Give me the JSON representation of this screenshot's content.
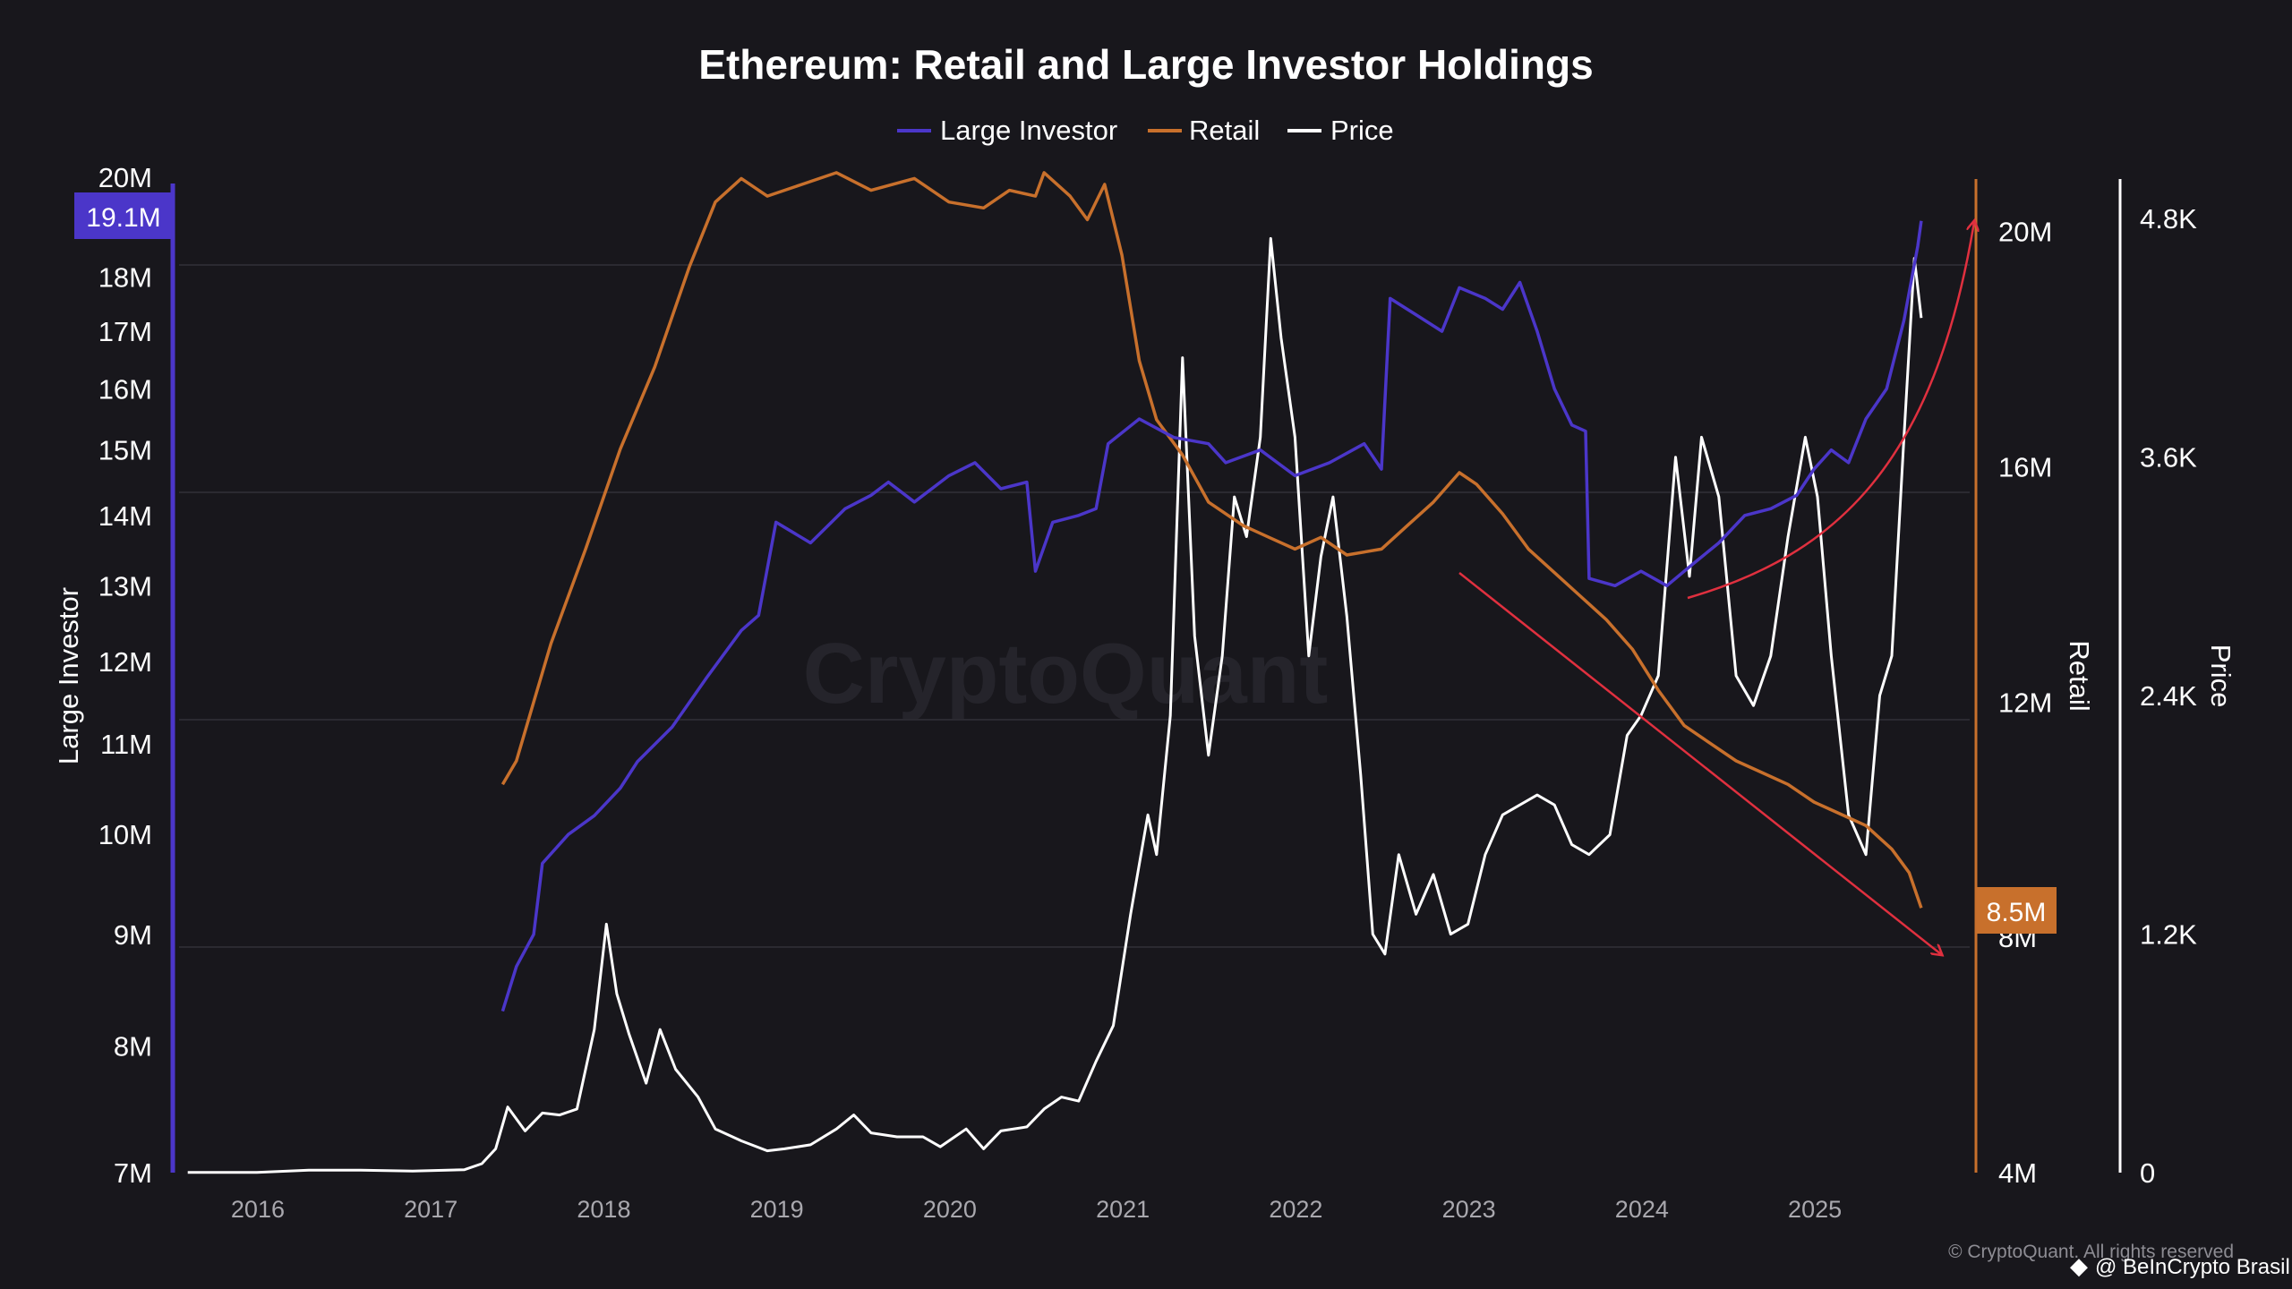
{
  "chart_data": {
    "type": "line",
    "title": "Ethereum: Retail and Large Investor Holdings",
    "watermark": "CryptoQuant",
    "legend": {
      "placement": "top-center",
      "items": [
        "Large Investor",
        "Retail",
        "Price"
      ]
    },
    "x_axis": {
      "ticks": [
        "2016",
        "2017",
        "2018",
        "2019",
        "2020",
        "2021",
        "2022",
        "2023",
        "2024",
        "2025"
      ],
      "range": [
        2015.55,
        2025.9
      ]
    },
    "y_axes": {
      "left": {
        "label": "Large Investor",
        "scale": "log",
        "range": [
          7000000,
          20000000
        ],
        "ticks": [
          "7M",
          "8M",
          "9M",
          "10M",
          "11M",
          "12M",
          "13M",
          "14M",
          "15M",
          "16M",
          "17M",
          "18M",
          "20M"
        ],
        "color": "#ffffff",
        "axis_color": "#4b36c9"
      },
      "right_retail": {
        "label": "Retail",
        "scale": "linear",
        "range": [
          4000000,
          21500000
        ],
        "ticks": [
          "4M",
          "8M",
          "12M",
          "16M",
          "20M"
        ],
        "axis_color": "#c8702c"
      },
      "right_price": {
        "label": "Price",
        "scale": "linear",
        "range": [
          0,
          4900
        ],
        "ticks": [
          "0",
          "1.2K",
          "2.4K",
          "3.6K",
          "4.8K"
        ],
        "axis_color": "#ffffff"
      }
    },
    "series": [
      {
        "name": "Large Investor",
        "axis": "left",
        "color": "#4b36c9",
        "last_value_label": "19.1M",
        "points": [
          [
            2017.42,
            8300000
          ],
          [
            2017.5,
            8700000
          ],
          [
            2017.6,
            9000000
          ],
          [
            2017.65,
            9700000
          ],
          [
            2017.8,
            10000000
          ],
          [
            2017.95,
            10200000
          ],
          [
            2018.1,
            10500000
          ],
          [
            2018.2,
            10800000
          ],
          [
            2018.4,
            11200000
          ],
          [
            2018.6,
            11800000
          ],
          [
            2018.8,
            12400000
          ],
          [
            2018.9,
            12600000
          ],
          [
            2019.0,
            13900000
          ],
          [
            2019.2,
            13600000
          ],
          [
            2019.4,
            14100000
          ],
          [
            2019.55,
            14300000
          ],
          [
            2019.65,
            14500000
          ],
          [
            2019.8,
            14200000
          ],
          [
            2020.0,
            14600000
          ],
          [
            2020.15,
            14800000
          ],
          [
            2020.3,
            14400000
          ],
          [
            2020.45,
            14500000
          ],
          [
            2020.5,
            13200000
          ],
          [
            2020.6,
            13900000
          ],
          [
            2020.75,
            14000000
          ],
          [
            2020.85,
            14100000
          ],
          [
            2020.92,
            15100000
          ],
          [
            2021.1,
            15500000
          ],
          [
            2021.3,
            15200000
          ],
          [
            2021.5,
            15100000
          ],
          [
            2021.6,
            14800000
          ],
          [
            2021.8,
            15000000
          ],
          [
            2022.0,
            14600000
          ],
          [
            2022.2,
            14800000
          ],
          [
            2022.4,
            15100000
          ],
          [
            2022.5,
            14700000
          ],
          [
            2022.55,
            17600000
          ],
          [
            2022.7,
            17300000
          ],
          [
            2022.85,
            17000000
          ],
          [
            2022.95,
            17800000
          ],
          [
            2023.1,
            17600000
          ],
          [
            2023.2,
            17400000
          ],
          [
            2023.3,
            17900000
          ],
          [
            2023.4,
            17000000
          ],
          [
            2023.5,
            16000000
          ],
          [
            2023.6,
            15400000
          ],
          [
            2023.68,
            15300000
          ],
          [
            2023.7,
            13100000
          ],
          [
            2023.85,
            13000000
          ],
          [
            2024.0,
            13200000
          ],
          [
            2024.15,
            13000000
          ],
          [
            2024.3,
            13300000
          ],
          [
            2024.45,
            13600000
          ],
          [
            2024.6,
            14000000
          ],
          [
            2024.75,
            14100000
          ],
          [
            2024.9,
            14300000
          ],
          [
            2025.0,
            14700000
          ],
          [
            2025.1,
            15000000
          ],
          [
            2025.2,
            14800000
          ],
          [
            2025.3,
            15500000
          ],
          [
            2025.42,
            16000000
          ],
          [
            2025.52,
            17200000
          ],
          [
            2025.6,
            18600000
          ],
          [
            2025.62,
            19100000
          ]
        ]
      },
      {
        "name": "Retail",
        "axis": "right_retail",
        "color": "#c8702c",
        "last_value_label": "8.5M",
        "points": [
          [
            2017.42,
            10600000
          ],
          [
            2017.5,
            11000000
          ],
          [
            2017.6,
            12000000
          ],
          [
            2017.7,
            13000000
          ],
          [
            2017.9,
            14600000
          ],
          [
            2018.1,
            16300000
          ],
          [
            2018.3,
            17700000
          ],
          [
            2018.5,
            19400000
          ],
          [
            2018.65,
            20500000
          ],
          [
            2018.8,
            20900000
          ],
          [
            2018.95,
            20600000
          ],
          [
            2019.15,
            20800000
          ],
          [
            2019.35,
            21000000
          ],
          [
            2019.55,
            20700000
          ],
          [
            2019.8,
            20900000
          ],
          [
            2020.0,
            20500000
          ],
          [
            2020.2,
            20400000
          ],
          [
            2020.35,
            20700000
          ],
          [
            2020.5,
            20600000
          ],
          [
            2020.55,
            21000000
          ],
          [
            2020.7,
            20600000
          ],
          [
            2020.8,
            20200000
          ],
          [
            2020.9,
            20800000
          ],
          [
            2021.0,
            19600000
          ],
          [
            2021.1,
            17800000
          ],
          [
            2021.2,
            16800000
          ],
          [
            2021.35,
            16200000
          ],
          [
            2021.5,
            15400000
          ],
          [
            2021.7,
            15000000
          ],
          [
            2021.85,
            14800000
          ],
          [
            2022.0,
            14600000
          ],
          [
            2022.15,
            14800000
          ],
          [
            2022.3,
            14500000
          ],
          [
            2022.5,
            14600000
          ],
          [
            2022.65,
            15000000
          ],
          [
            2022.8,
            15400000
          ],
          [
            2022.95,
            15900000
          ],
          [
            2023.05,
            15700000
          ],
          [
            2023.2,
            15200000
          ],
          [
            2023.35,
            14600000
          ],
          [
            2023.5,
            14200000
          ],
          [
            2023.65,
            13800000
          ],
          [
            2023.8,
            13400000
          ],
          [
            2023.95,
            12900000
          ],
          [
            2024.1,
            12200000
          ],
          [
            2024.25,
            11600000
          ],
          [
            2024.4,
            11300000
          ],
          [
            2024.55,
            11000000
          ],
          [
            2024.7,
            10800000
          ],
          [
            2024.85,
            10600000
          ],
          [
            2025.0,
            10300000
          ],
          [
            2025.15,
            10100000
          ],
          [
            2025.3,
            9900000
          ],
          [
            2025.45,
            9500000
          ],
          [
            2025.55,
            9100000
          ],
          [
            2025.62,
            8500000
          ]
        ]
      },
      {
        "name": "Price",
        "axis": "right_price",
        "color": "#ffffff",
        "points": [
          [
            2015.6,
            1
          ],
          [
            2016.0,
            1
          ],
          [
            2016.3,
            12
          ],
          [
            2016.6,
            12
          ],
          [
            2016.9,
            8
          ],
          [
            2017.2,
            15
          ],
          [
            2017.3,
            45
          ],
          [
            2017.38,
            120
          ],
          [
            2017.45,
            330
          ],
          [
            2017.55,
            210
          ],
          [
            2017.65,
            300
          ],
          [
            2017.75,
            290
          ],
          [
            2017.85,
            320
          ],
          [
            2017.95,
            720
          ],
          [
            2018.02,
            1250
          ],
          [
            2018.08,
            900
          ],
          [
            2018.15,
            700
          ],
          [
            2018.25,
            450
          ],
          [
            2018.33,
            720
          ],
          [
            2018.42,
            520
          ],
          [
            2018.55,
            380
          ],
          [
            2018.65,
            220
          ],
          [
            2018.8,
            160
          ],
          [
            2018.95,
            110
          ],
          [
            2019.05,
            120
          ],
          [
            2019.2,
            140
          ],
          [
            2019.35,
            220
          ],
          [
            2019.45,
            290
          ],
          [
            2019.55,
            200
          ],
          [
            2019.7,
            180
          ],
          [
            2019.85,
            180
          ],
          [
            2019.95,
            130
          ],
          [
            2020.1,
            220
          ],
          [
            2020.2,
            120
          ],
          [
            2020.3,
            210
          ],
          [
            2020.45,
            230
          ],
          [
            2020.55,
            320
          ],
          [
            2020.65,
            380
          ],
          [
            2020.75,
            360
          ],
          [
            2020.85,
            560
          ],
          [
            2020.95,
            740
          ],
          [
            2021.05,
            1300
          ],
          [
            2021.15,
            1800
          ],
          [
            2021.2,
            1600
          ],
          [
            2021.28,
            2300
          ],
          [
            2021.35,
            4100
          ],
          [
            2021.42,
            2700
          ],
          [
            2021.5,
            2100
          ],
          [
            2021.58,
            2600
          ],
          [
            2021.65,
            3400
          ],
          [
            2021.72,
            3200
          ],
          [
            2021.8,
            3700
          ],
          [
            2021.86,
            4700
          ],
          [
            2021.92,
            4200
          ],
          [
            2022.0,
            3700
          ],
          [
            2022.08,
            2600
          ],
          [
            2022.15,
            3100
          ],
          [
            2022.22,
            3400
          ],
          [
            2022.3,
            2800
          ],
          [
            2022.38,
            2000
          ],
          [
            2022.45,
            1200
          ],
          [
            2022.52,
            1100
          ],
          [
            2022.6,
            1600
          ],
          [
            2022.7,
            1300
          ],
          [
            2022.8,
            1500
          ],
          [
            2022.9,
            1200
          ],
          [
            2023.0,
            1250
          ],
          [
            2023.1,
            1600
          ],
          [
            2023.2,
            1800
          ],
          [
            2023.3,
            1850
          ],
          [
            2023.4,
            1900
          ],
          [
            2023.5,
            1850
          ],
          [
            2023.6,
            1650
          ],
          [
            2023.7,
            1600
          ],
          [
            2023.82,
            1700
          ],
          [
            2023.92,
            2200
          ],
          [
            2024.0,
            2300
          ],
          [
            2024.1,
            2500
          ],
          [
            2024.2,
            3600
          ],
          [
            2024.28,
            3000
          ],
          [
            2024.35,
            3700
          ],
          [
            2024.45,
            3400
          ],
          [
            2024.55,
            2500
          ],
          [
            2024.65,
            2350
          ],
          [
            2024.75,
            2600
          ],
          [
            2024.85,
            3200
          ],
          [
            2024.95,
            3700
          ],
          [
            2025.02,
            3400
          ],
          [
            2025.1,
            2600
          ],
          [
            2025.2,
            1800
          ],
          [
            2025.3,
            1600
          ],
          [
            2025.38,
            2400
          ],
          [
            2025.45,
            2600
          ],
          [
            2025.52,
            3700
          ],
          [
            2025.58,
            4600
          ],
          [
            2025.62,
            4300
          ]
        ]
      }
    ],
    "annotations": [
      {
        "type": "arrow",
        "color": "#e0303f",
        "meaning": "retail decline",
        "from": [
          2022.82,
          2.9
        ],
        "to": [
          2025.6,
          1.1
        ]
      },
      {
        "type": "curved-arrow",
        "color": "#e0303f",
        "meaning": "large investor rise",
        "from": [
          2024.15,
          2.9
        ],
        "to": [
          2025.65,
          4.8
        ]
      }
    ],
    "credits": {
      "cryptoquant": "© CryptoQuant. All rights reserved",
      "beincrypto": "@ BeInCrypto Brasil"
    }
  }
}
